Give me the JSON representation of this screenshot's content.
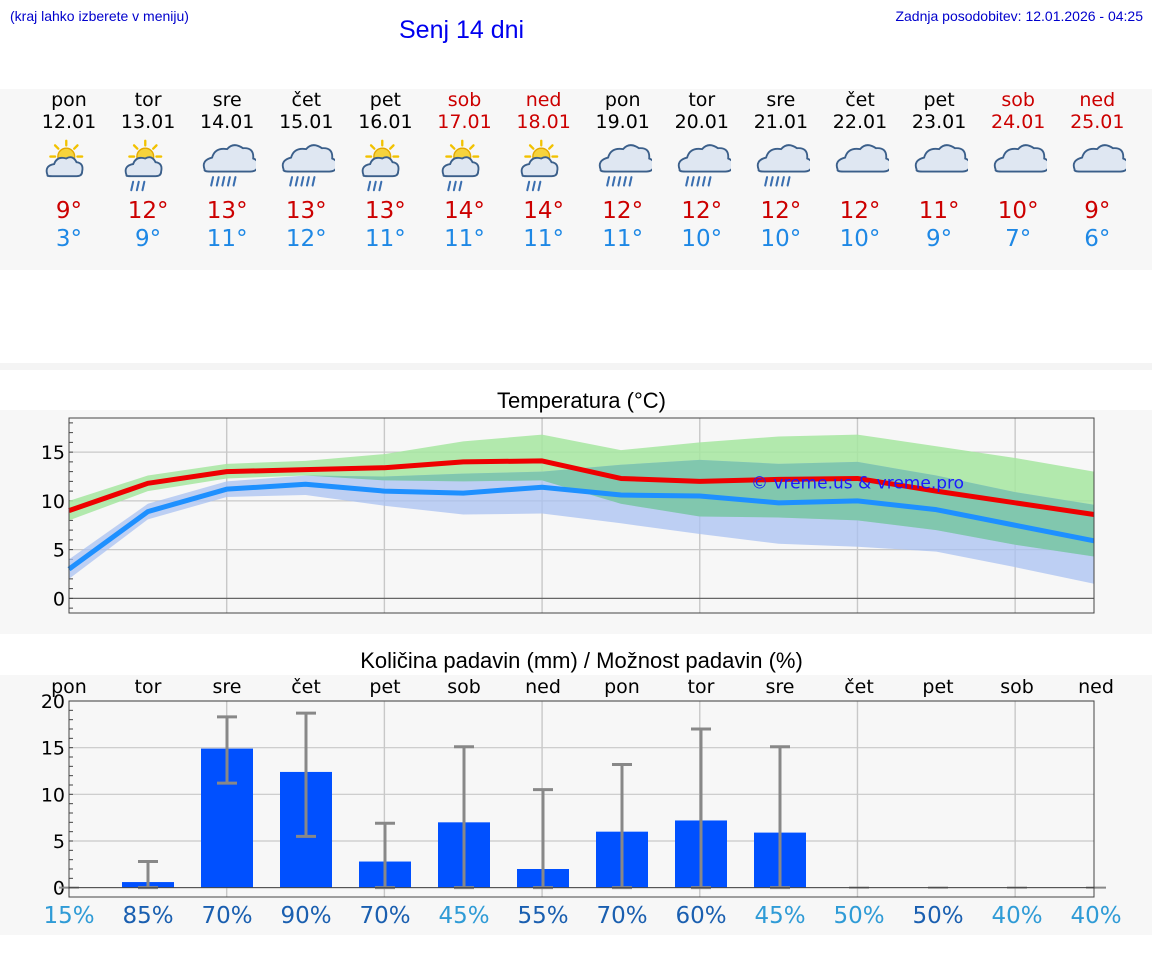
{
  "header": {
    "note": "(kraj lahko izberete v meniju)",
    "title": "Senj 14 dni",
    "updated": "Zadnja posodobitev: 12.01.2026 - 04:25"
  },
  "days": [
    {
      "name": "pon",
      "date": "12.01",
      "weekend": false,
      "icon": "sun-cloud-icon",
      "tmax": "9°",
      "tmin": "3°"
    },
    {
      "name": "tor",
      "date": "13.01",
      "weekend": false,
      "icon": "sun-cloud-rain-icon",
      "tmax": "12°",
      "tmin": "9°"
    },
    {
      "name": "sre",
      "date": "14.01",
      "weekend": false,
      "icon": "cloud-rain-icon",
      "tmax": "13°",
      "tmin": "11°"
    },
    {
      "name": "čet",
      "date": "15.01",
      "weekend": false,
      "icon": "cloud-rain-icon",
      "tmax": "13°",
      "tmin": "12°"
    },
    {
      "name": "pet",
      "date": "16.01",
      "weekend": false,
      "icon": "sun-cloud-rain-icon",
      "tmax": "13°",
      "tmin": "11°"
    },
    {
      "name": "sob",
      "date": "17.01",
      "weekend": true,
      "icon": "sun-cloud-rain-icon",
      "tmax": "14°",
      "tmin": "11°"
    },
    {
      "name": "ned",
      "date": "18.01",
      "weekend": true,
      "icon": "sun-cloud-rain-icon",
      "tmax": "14°",
      "tmin": "11°"
    },
    {
      "name": "pon",
      "date": "19.01",
      "weekend": false,
      "icon": "cloud-rain-icon",
      "tmax": "12°",
      "tmin": "11°"
    },
    {
      "name": "tor",
      "date": "20.01",
      "weekend": false,
      "icon": "cloud-rain-icon",
      "tmax": "12°",
      "tmin": "10°"
    },
    {
      "name": "sre",
      "date": "21.01",
      "weekend": false,
      "icon": "cloud-rain-icon",
      "tmax": "12°",
      "tmin": "10°"
    },
    {
      "name": "čet",
      "date": "22.01",
      "weekend": false,
      "icon": "cloud-icon",
      "tmax": "12°",
      "tmin": "10°"
    },
    {
      "name": "pet",
      "date": "23.01",
      "weekend": false,
      "icon": "cloud-icon",
      "tmax": "11°",
      "tmin": "9°"
    },
    {
      "name": "sob",
      "date": "24.01",
      "weekend": true,
      "icon": "cloud-icon",
      "tmax": "10°",
      "tmin": "7°"
    },
    {
      "name": "ned",
      "date": "25.01",
      "weekend": true,
      "icon": "cloud-icon",
      "tmax": "9°",
      "tmin": "6°"
    }
  ],
  "colors": {
    "tmax_line": "#ee0000",
    "tmin_line": "#1e90ff",
    "tmax_band": "#a6e6a0",
    "tmin_band": "#a9c2f2",
    "overlap_band": "#7cc7a8",
    "bar": "#0050ff",
    "whisker": "#888888",
    "pct_light": "#2f9bd6",
    "pct_dark": "#1a5fb0"
  },
  "chart_data": [
    {
      "type": "line",
      "title": "Temperatura (°C)",
      "watermark": "© vreme.us & vreme.pro",
      "ylim": [
        -1.5,
        18.5
      ],
      "yticks": [
        0,
        5,
        10,
        15
      ],
      "x": [
        0,
        1,
        2,
        3,
        4,
        5,
        6,
        7,
        8,
        9,
        10,
        11,
        12,
        13
      ],
      "series": [
        {
          "name": "max",
          "values": [
            9.0,
            11.8,
            13.0,
            13.2,
            13.4,
            14.0,
            14.1,
            12.3,
            12.0,
            12.2,
            12.3,
            11.0,
            9.8,
            8.6
          ]
        },
        {
          "name": "min",
          "values": [
            3.0,
            8.9,
            11.2,
            11.7,
            11.0,
            10.8,
            11.4,
            10.6,
            10.5,
            9.8,
            10.0,
            9.1,
            7.5,
            5.9
          ]
        }
      ],
      "bands": [
        {
          "name": "max-range",
          "upper": [
            10.0,
            12.6,
            13.8,
            14.1,
            14.8,
            16.1,
            16.8,
            15.2,
            16.0,
            16.6,
            16.8,
            15.6,
            14.4,
            13.0
          ],
          "lower": [
            8.0,
            11.0,
            12.3,
            12.6,
            12.1,
            12.0,
            12.1,
            9.7,
            8.4,
            8.3,
            8.0,
            7.0,
            5.5,
            4.3
          ]
        },
        {
          "name": "min-range",
          "upper": [
            4.0,
            9.7,
            12.0,
            12.6,
            12.5,
            12.8,
            13.0,
            13.7,
            14.2,
            13.8,
            14.0,
            12.6,
            10.9,
            9.6
          ],
          "lower": [
            2.0,
            8.1,
            10.4,
            10.6,
            9.5,
            8.6,
            8.7,
            7.7,
            6.6,
            5.6,
            5.3,
            4.8,
            3.2,
            1.5
          ]
        }
      ]
    },
    {
      "type": "bar",
      "title": "Količina padavin (mm) / Možnost padavin (%)",
      "categories": [
        "pon",
        "tor",
        "sre",
        "čet",
        "pet",
        "sob",
        "ned",
        "pon",
        "tor",
        "sre",
        "čet",
        "pet",
        "sob",
        "ned"
      ],
      "ylim": [
        -1,
        20
      ],
      "yticks": [
        0,
        5,
        10,
        15,
        20
      ],
      "values": [
        0,
        0.6,
        14.9,
        12.4,
        2.8,
        7.0,
        2.0,
        6.0,
        7.2,
        5.9,
        0,
        0,
        0,
        0
      ],
      "error_low": [
        0,
        0,
        11.2,
        5.5,
        0,
        0,
        0,
        0,
        0,
        0,
        0,
        0,
        0,
        0
      ],
      "error_high": [
        0,
        2.8,
        18.3,
        18.7,
        6.9,
        15.1,
        10.5,
        13.2,
        17.0,
        15.1,
        0,
        0,
        0,
        0
      ],
      "probability": [
        "15%",
        "85%",
        "70%",
        "90%",
        "70%",
        "45%",
        "55%",
        "70%",
        "60%",
        "45%",
        "50%",
        "50%",
        "40%",
        "40%"
      ],
      "probability_tone": [
        "light",
        "dark",
        "dark",
        "dark",
        "dark",
        "light",
        "dark",
        "dark",
        "dark",
        "light",
        "light",
        "dark",
        "light",
        "light"
      ]
    }
  ]
}
